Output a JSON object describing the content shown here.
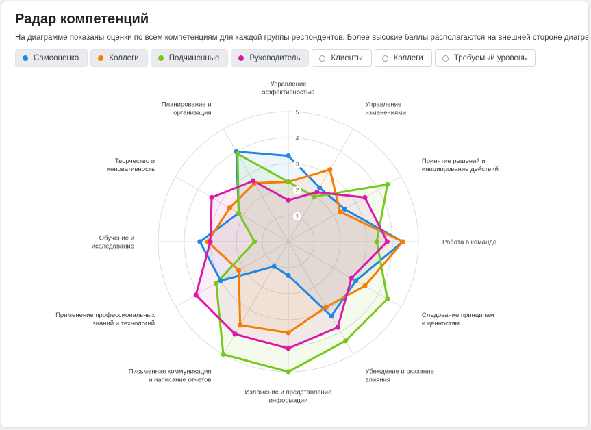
{
  "header": {
    "title": "Радар компетенций",
    "description": "На диаграмме показаны оценки по всем компетенциям для каждой группы респондентов. Более высокие баллы располагаются на внешней стороне диаграммы."
  },
  "legend": [
    {
      "label": "Самооценка",
      "color": "#1e88e5",
      "active": true
    },
    {
      "label": "Коллеги",
      "color": "#f57c00",
      "active": true
    },
    {
      "label": "Подчиненные",
      "color": "#76c81a",
      "active": true
    },
    {
      "label": "Руководитель",
      "color": "#d91ba8",
      "active": true
    },
    {
      "label": "Клиенты",
      "color": "#9aa0a6",
      "active": false
    },
    {
      "label": "Коллеги",
      "color": "#9aa0a6",
      "active": false
    },
    {
      "label": "Требуемый уровень",
      "color": "#9aa0a6",
      "active": false
    }
  ],
  "chart_data": {
    "type": "radar",
    "title": "Радар компетенций",
    "scale": [
      0,
      5
    ],
    "ticks": [
      "1",
      "2",
      "3",
      "4",
      "5"
    ],
    "axes": [
      "Управление эффективностью",
      "Управление изменениями",
      "Принятие решений и инициирование действий",
      "Работа в команде",
      "Следование принципам и ценностям",
      "Убеждение и оказание влияния",
      "Изложение и представление информации",
      "Письменная коммуникация и написание отчетов",
      "Применение профессиональных знаний и технологий",
      "Обучение и исследование",
      "Творчество и инновативность",
      "Планирование и организация"
    ],
    "axis_label_lines": [
      [
        "Управление",
        "эффективностью"
      ],
      [
        "Управление",
        "изменениями"
      ],
      [
        "Принятие решений и",
        "инициирование действий"
      ],
      [
        "Работа в команде"
      ],
      [
        "Следование принципам",
        "и ценностям"
      ],
      [
        "Убеждение и оказание",
        "влияния"
      ],
      [
        "Изложение и представление",
        "информации"
      ],
      [
        "Письменная коммуникация",
        "и написание отчетов"
      ],
      [
        "Применение профессиональных",
        "знаний и технологий"
      ],
      [
        "Обучение и",
        "исследование"
      ],
      [
        "Творчество и",
        "инновативность"
      ],
      [
        "Планирование и",
        "организация"
      ]
    ],
    "series": [
      {
        "name": "Самооценка",
        "color": "#1e88e5",
        "values": [
          3.3,
          2.4,
          2.5,
          4.4,
          3.0,
          3.3,
          1.3,
          1.1,
          3.0,
          3.4,
          2.2,
          4.0
        ]
      },
      {
        "name": "Коллеги",
        "color": "#f57c00",
        "values": [
          2.3,
          3.2,
          2.3,
          4.4,
          3.4,
          2.9,
          3.5,
          3.7,
          2.2,
          3.1,
          2.6,
          2.6
        ]
      },
      {
        "name": "Подчиненные",
        "color": "#76c81a",
        "values": [
          2.3,
          2.0,
          4.4,
          3.4,
          4.4,
          4.4,
          5.0,
          5.0,
          3.2,
          1.3,
          2.2,
          3.9
        ]
      },
      {
        "name": "Руководитель",
        "color": "#d91ba8",
        "values": [
          1.6,
          2.2,
          3.4,
          3.8,
          2.8,
          3.8,
          4.1,
          4.1,
          4.1,
          3.0,
          3.4,
          2.7
        ]
      }
    ]
  }
}
